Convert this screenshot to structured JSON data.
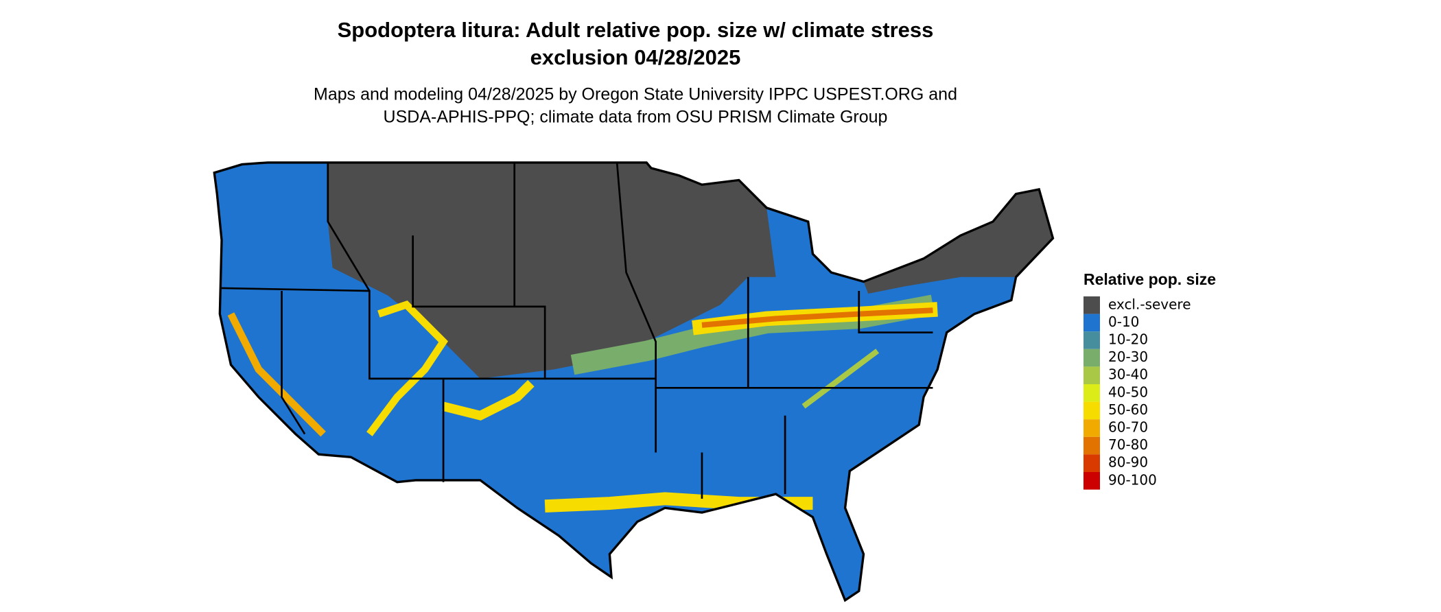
{
  "header": {
    "title": [
      "Spodoptera litura: Adult relative pop. size w/ climate stress",
      "exclusion 04/28/2025"
    ],
    "subtitle": [
      "Maps and modeling 04/28/2025 by Oregon State University IPPC USPEST.ORG and",
      "USDA-APHIS-PPQ; climate data from OSU PRISM Climate Group"
    ]
  },
  "legend": {
    "title": "Relative pop. size",
    "items": [
      {
        "label": "excl.-severe",
        "color": "#4d4d4d"
      },
      {
        "label": "0-10",
        "color": "#1e74cf"
      },
      {
        "label": "10-20",
        "color": "#468e9e"
      },
      {
        "label": "20-30",
        "color": "#78ad6c"
      },
      {
        "label": "30-40",
        "color": "#a9c946"
      },
      {
        "label": "40-50",
        "color": "#dcec18"
      },
      {
        "label": "50-60",
        "color": "#f7dc00"
      },
      {
        "label": "60-70",
        "color": "#f0aa00"
      },
      {
        "label": "70-80",
        "color": "#e37300"
      },
      {
        "label": "80-90",
        "color": "#d93a00"
      },
      {
        "label": "90-100",
        "color": "#cc0000"
      }
    ]
  }
}
